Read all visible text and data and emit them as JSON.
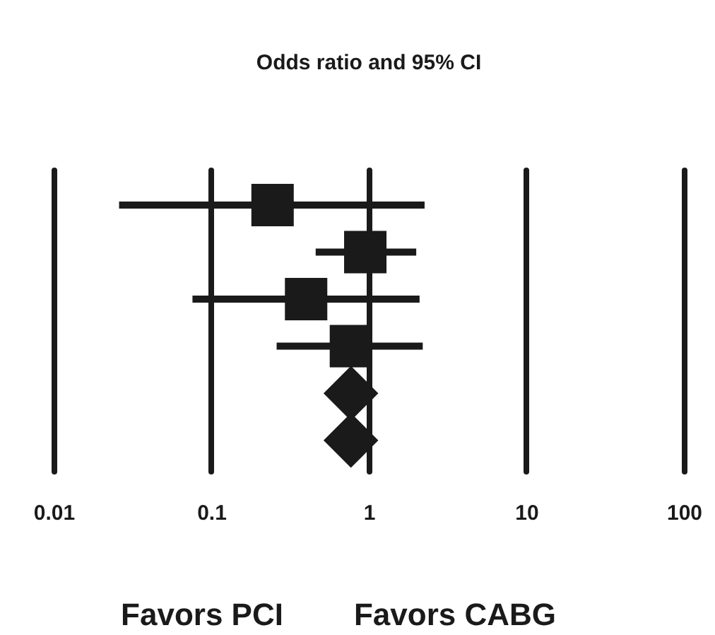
{
  "chart_data": {
    "type": "scatter",
    "orientation": "horizontal",
    "title": "Odds ratio and 95% CI",
    "categories": [
      null,
      null,
      null,
      null,
      null,
      null
    ],
    "series": [
      {
        "marker": "square",
        "color": "#1a1a1a",
        "values": [
          0.245,
          0.95,
          0.4,
          0.77,
          null,
          null
        ],
        "errors": [
          [
            0.026,
            2.26
          ],
          [
            0.46,
            2.0
          ],
          [
            0.076,
            2.1
          ],
          [
            0.26,
            2.2
          ],
          null,
          null
        ]
      },
      {
        "marker": "diamond",
        "color": "#1a1a1a",
        "values": [
          null,
          null,
          null,
          null,
          0.77,
          0.77
        ]
      }
    ],
    "log": "x",
    "xlim": [
      0.01,
      100
    ],
    "xticks": [
      0.01,
      0.1,
      1,
      10,
      100
    ],
    "grid": "x",
    "annotations": [
      "Favors PCI",
      "Favors CABG"
    ]
  }
}
